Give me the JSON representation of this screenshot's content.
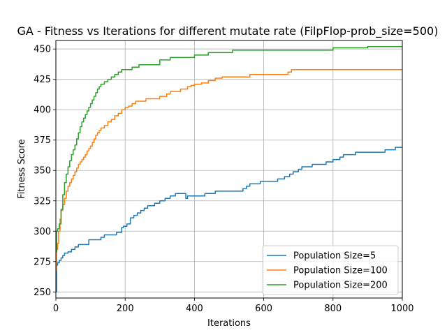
{
  "chart_data": {
    "type": "line",
    "title": "GA - Fitness vs Iterations for different mutate rate (FilpFlop-prob_size=500)",
    "xlabel": "Iterations",
    "ylabel": "Fitness Score",
    "xlim": [
      0,
      1000
    ],
    "ylim": [
      245,
      457
    ],
    "xticks": [
      0,
      200,
      400,
      600,
      800,
      1000
    ],
    "yticks": [
      250,
      275,
      300,
      325,
      350,
      375,
      400,
      425,
      450
    ],
    "grid": true,
    "legend_position": "lower right",
    "series": [
      {
        "name": "Population Size=5",
        "color": "#1f77b4",
        "x": [
          0,
          2,
          5,
          10,
          15,
          20,
          25,
          35,
          45,
          55,
          65,
          95,
          130,
          140,
          175,
          190,
          195,
          205,
          215,
          225,
          235,
          245,
          255,
          265,
          285,
          300,
          315,
          330,
          345,
          375,
          380,
          430,
          460,
          540,
          550,
          560,
          590,
          640,
          660,
          675,
          685,
          700,
          710,
          740,
          780,
          800,
          820,
          830,
          865,
          950,
          980,
          1000
        ],
        "y": [
          250,
          272,
          274,
          276,
          278,
          280,
          282,
          283,
          285,
          287,
          289,
          293,
          295,
          297,
          299,
          303,
          304,
          306,
          311,
          313,
          315,
          317,
          319,
          321,
          323,
          325,
          327,
          329,
          331,
          327,
          329,
          331,
          333,
          335,
          337,
          339,
          341,
          343,
          345,
          347,
          349,
          351,
          353,
          355,
          357,
          359,
          361,
          363,
          365,
          367,
          369,
          369
        ]
      },
      {
        "name": "Population Size=100",
        "color": "#ff7f0e",
        "x": [
          0,
          2,
          5,
          8,
          12,
          15,
          20,
          25,
          30,
          35,
          40,
          45,
          50,
          55,
          60,
          65,
          70,
          75,
          80,
          85,
          90,
          95,
          100,
          105,
          110,
          115,
          120,
          125,
          130,
          140,
          150,
          160,
          170,
          180,
          190,
          200,
          210,
          220,
          230,
          240,
          260,
          300,
          320,
          330,
          360,
          380,
          390,
          400,
          420,
          440,
          460,
          480,
          560,
          670,
          680,
          700,
          800,
          1000
        ],
        "y": [
          268,
          285,
          290,
          300,
          310,
          317,
          322,
          327,
          333,
          337,
          340,
          343,
          346,
          349,
          352,
          355,
          357,
          359,
          361,
          363,
          366,
          368,
          370,
          373,
          376,
          379,
          381,
          383,
          385,
          387,
          390,
          392,
          395,
          397,
          400,
          402,
          403,
          405,
          407,
          407,
          409,
          411,
          413,
          415,
          417,
          419,
          420,
          421,
          422,
          424,
          426,
          427,
          429,
          431,
          433,
          433,
          433,
          433
        ]
      },
      {
        "name": "Population Size=200",
        "color": "#2ca02c",
        "x": [
          0,
          2,
          5,
          10,
          15,
          20,
          25,
          30,
          35,
          40,
          45,
          50,
          55,
          60,
          65,
          70,
          75,
          80,
          85,
          90,
          95,
          100,
          105,
          110,
          115,
          120,
          125,
          130,
          140,
          150,
          160,
          170,
          180,
          190,
          200,
          220,
          240,
          260,
          280,
          300,
          330,
          360,
          380,
          400,
          420,
          440,
          460,
          480,
          510,
          540,
          600,
          700,
          800,
          900,
          1000
        ],
        "y": [
          283,
          300,
          302,
          306,
          318,
          330,
          340,
          347,
          353,
          358,
          363,
          367,
          371,
          376,
          381,
          386,
          390,
          393,
          396,
          399,
          402,
          405,
          408,
          411,
          414,
          417,
          419,
          421,
          423,
          425,
          427,
          429,
          431,
          433,
          433,
          435,
          437,
          437,
          437,
          441,
          443,
          443,
          443,
          445,
          445,
          447,
          447,
          447,
          449,
          449,
          449,
          449,
          451,
          452,
          452
        ]
      }
    ]
  }
}
